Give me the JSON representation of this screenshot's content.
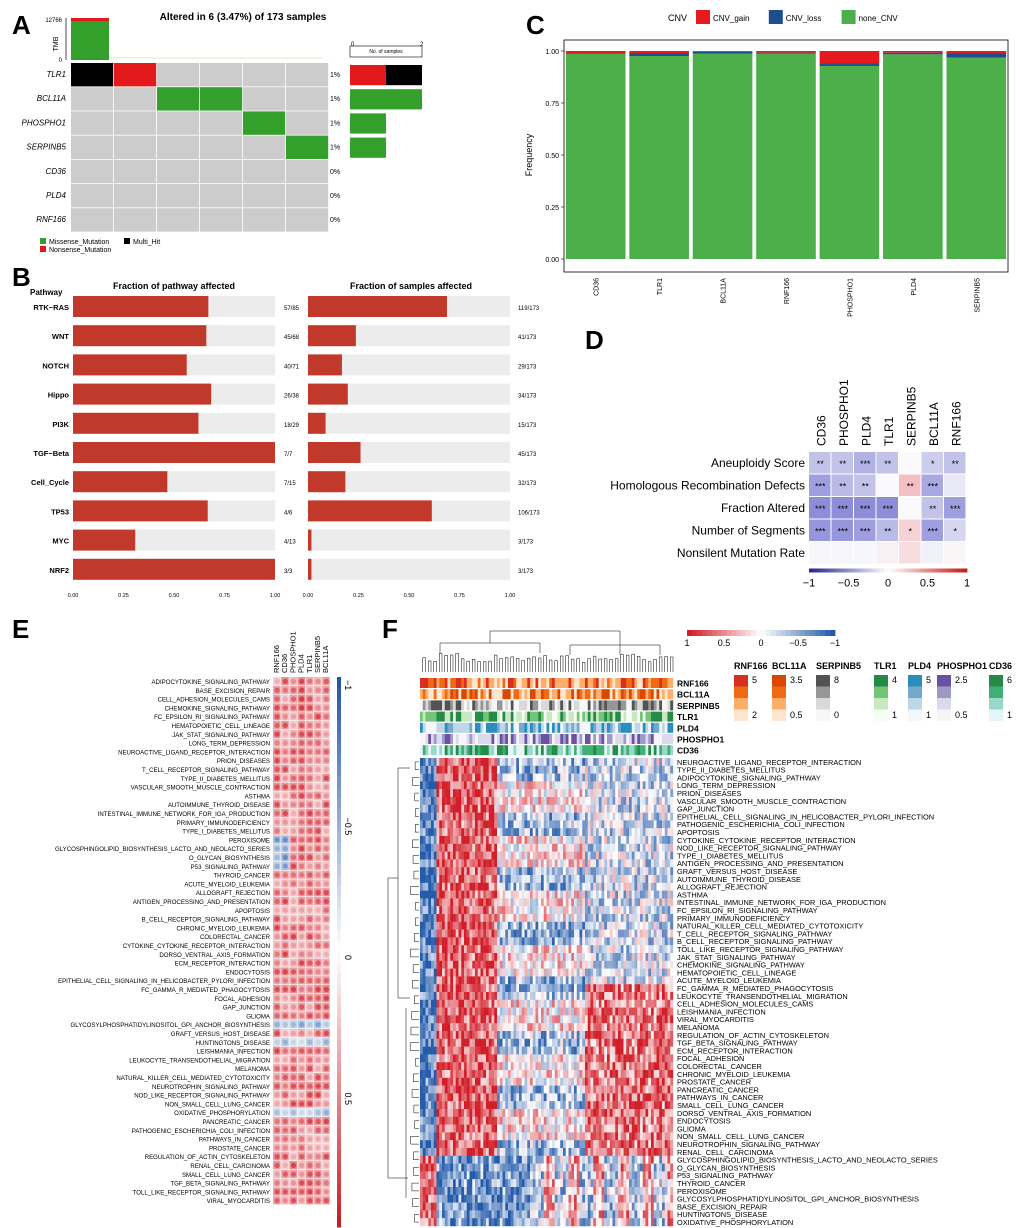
{
  "panel_letters": {
    "a": "A",
    "b": "B",
    "c": "C",
    "d": "D",
    "e": "E",
    "f": "F"
  },
  "panel_a": {
    "title": "Altered in 6 (3.47%) of 173 samples",
    "tmb_label": "TMB",
    "tmb_max": "12766",
    "tmb_min": "0",
    "no_samples_label": "No. of samples",
    "no_samples_ticks": [
      "0",
      "2"
    ],
    "genes": [
      {
        "name": "TLR1",
        "pct": "1%"
      },
      {
        "name": "BCL11A",
        "pct": "1%"
      },
      {
        "name": "PHOSPHO1",
        "pct": "1%"
      },
      {
        "name": "SERPINB5",
        "pct": "1%"
      },
      {
        "name": "CD36",
        "pct": "0%"
      },
      {
        "name": "PLD4",
        "pct": "0%"
      },
      {
        "name": "RNF166",
        "pct": "0%"
      }
    ],
    "legend": [
      "Missense_Mutation",
      "Multi_Hit",
      "Nonsense_Mutation"
    ],
    "colors": {
      "missense": "#33A02C",
      "nonsense": "#E31A1C",
      "multi": "#000000",
      "bg": "#CCCCCC"
    }
  },
  "panel_b": {
    "pathway_header": "Pathway",
    "left_title": "Fraction of pathway affected",
    "right_title": "Fraction of samples affected",
    "x_ticks": [
      "0.00",
      "0.25",
      "0.50",
      "0.75",
      "1.00"
    ],
    "rows": [
      {
        "name": "RTK−RAS",
        "pf": 0.67,
        "pl": "57/85",
        "sf": 0.688,
        "sl": "119/173"
      },
      {
        "name": "WNT",
        "pf": 0.66,
        "pl": "45/68",
        "sf": 0.237,
        "sl": "41/173"
      },
      {
        "name": "NOTCH",
        "pf": 0.563,
        "pl": "40/71",
        "sf": 0.168,
        "sl": "29/173"
      },
      {
        "name": "Hippo",
        "pf": 0.684,
        "pl": "26/38",
        "sf": 0.197,
        "sl": "34/173"
      },
      {
        "name": "PI3K",
        "pf": 0.621,
        "pl": "18/29",
        "sf": 0.087,
        "sl": "15/173"
      },
      {
        "name": "TGF−Beta",
        "pf": 1.0,
        "pl": "7/7",
        "sf": 0.26,
        "sl": "45/173"
      },
      {
        "name": "Cell_Cycle",
        "pf": 0.467,
        "pl": "7/15",
        "sf": 0.185,
        "sl": "32/173"
      },
      {
        "name": "TP53",
        "pf": 0.667,
        "pl": "4/6",
        "sf": 0.613,
        "sl": "106/173"
      },
      {
        "name": "MYC",
        "pf": 0.308,
        "pl": "4/13",
        "sf": 0.017,
        "sl": "3/173"
      },
      {
        "name": "NRF2",
        "pf": 1.0,
        "pl": "3/3",
        "sf": 0.017,
        "sl": "3/173"
      }
    ]
  },
  "chart_data": [
    {
      "type": "bar",
      "title": "",
      "ylabel": "Frequency",
      "ylim": [
        0,
        1
      ],
      "y_ticks": [
        "0.00",
        "0.25",
        "0.50",
        "0.75",
        "1.00"
      ],
      "legend_title": "CNV",
      "legend_position": "top",
      "categories": [
        "CD36",
        "TLR1",
        "BCL11A",
        "RNF166",
        "PHOSPHO1",
        "PLD4",
        "SERPINB5"
      ],
      "series": [
        {
          "name": "CNV_gain",
          "color": "#E41A1C",
          "values": [
            0.01,
            0.012,
            0.004,
            0.008,
            0.06,
            0.008,
            0.012
          ]
        },
        {
          "name": "CNV_loss",
          "color": "#1F4E8C",
          "values": [
            0.004,
            0.012,
            0.008,
            0.004,
            0.012,
            0.008,
            0.02
          ]
        },
        {
          "name": "none_CNV",
          "color": "#4DAF4A",
          "values": [
            0.986,
            0.976,
            0.988,
            0.988,
            0.928,
            0.984,
            0.968
          ]
        }
      ]
    },
    {
      "type": "heatmap",
      "columns": [
        "CD36",
        "PHOSPHO1",
        "PLD4",
        "TLR1",
        "SERPINB5",
        "BCL11A",
        "RNF166"
      ],
      "rows": [
        "Aneuploidy Score",
        "Homologous Recombination Defects",
        "Fraction Altered",
        "Number of Segments",
        "Nonsilent Mutation Rate"
      ],
      "values": [
        [
          -0.3,
          -0.3,
          -0.4,
          -0.3,
          0.0,
          -0.25,
          -0.3
        ],
        [
          -0.5,
          -0.35,
          -0.3,
          0.0,
          0.3,
          -0.45,
          -0.1
        ],
        [
          -0.6,
          -0.6,
          -0.6,
          -0.6,
          0.0,
          -0.3,
          -0.5
        ],
        [
          -0.55,
          -0.55,
          -0.5,
          -0.35,
          0.2,
          -0.5,
          -0.2
        ],
        [
          -0.02,
          -0.02,
          -0.02,
          0.05,
          0.15,
          -0.05,
          0.02
        ]
      ],
      "stars": [
        [
          "**",
          "**",
          "***",
          "**",
          "",
          "*",
          "**"
        ],
        [
          "***",
          "**",
          "**",
          "",
          "**",
          "***",
          ""
        ],
        [
          "***",
          "***",
          "***",
          "***",
          "",
          "**",
          "***"
        ],
        [
          "***",
          "***",
          "***",
          "**",
          "*",
          "***",
          "*"
        ],
        [
          "",
          "",
          "",
          "",
          "",
          "",
          ""
        ]
      ],
      "scale_ticks": [
        "−1",
        "−0.5",
        "0",
        "0.5",
        "1"
      ]
    }
  ],
  "panel_e": {
    "columns": [
      "RNF166",
      "CD36",
      "PHOSPHO1",
      "PLD4",
      "TLR1",
      "SERPINB5",
      "BCL11A"
    ],
    "scale_labels": [
      "−1",
      "−0.5",
      "0",
      "0.5",
      "1"
    ],
    "rows": [
      "ADIPOCYTOKINE_SIGNALING_PATHWAY",
      "BASE_EXCISION_REPAIR",
      "CELL_ADHESION_MOLECULES_CAMS",
      "CHEMOKINE_SIGNALING_PATHWAY",
      "FC_EPSILON_RI_SIGNALING_PATHWAY",
      "HEMATOPOIETIC_CELL_LINEAGE",
      "JAK_STAT_SIGNALING_PATHWAY",
      "LONG_TERM_DEPRESSION",
      "NEUROACTIVE_LIGAND_RECEPTOR_INTERACTION",
      "PRION_DISEASES",
      "T_CELL_RECEPTOR_SIGNALING_PATHWAY",
      "TYPE_II_DIABETES_MELLITUS",
      "VASCULAR_SMOOTH_MUSCLE_CONTRACTION",
      "ASTHMA",
      "AUTOIMMUNE_THYROID_DISEASE",
      "INTESTINAL_IMMUNE_NETWORK_FOR_IGA_PRODUCTION",
      "PRIMARY_IMMUNODEFICIENCY",
      "TYPE_I_DIABETES_MELLITUS",
      "PEROXISOME",
      "GLYCOSPHINGOLIPID_BIOSYNTHESIS_LACTO_AND_NEOLACTO_SERIES",
      "O_GLYCAN_BIOSYNTHESIS",
      "P53_SIGNALING_PATHWAY",
      "THYROID_CANCER",
      "ACUTE_MYELOID_LEUKEMIA",
      "ALLOGRAFT_REJECTION",
      "ANTIGEN_PROCESSING_AND_PRESENTATION",
      "APOPTOSIS",
      "B_CELL_RECEPTOR_SIGNALING_PATHWAY",
      "CHRONIC_MYELOID_LEUKEMIA",
      "COLORECTAL_CANCER",
      "CYTOKINE_CYTOKINE_RECEPTOR_INTERACTION",
      "DORSO_VENTRAL_AXIS_FORMATION",
      "ECM_RECEPTOR_INTERACTION",
      "ENDOCYTOSIS",
      "EPITHELIAL_CELL_SIGNALING_IN_HELICOBACTER_PYLORI_INFECTION",
      "FC_GAMMA_R_MEDIATED_PHAGOCYTOSIS",
      "FOCAL_ADHESION",
      "GAP_JUNCTION",
      "GLIOMA",
      "GLYCOSYLPHOSPHATIDYLINOSITOL_GPI_ANCHOR_BIOSYNTHESIS",
      "GRAFT_VERSUS_HOST_DISEASE",
      "HUNTINGTONS_DISEASE",
      "LEISHMANIA_INFECTION",
      "LEUKOCYTE_TRANSENDOTHELIAL_MIGRATION",
      "MELANOMA",
      "NATURAL_KILLER_CELL_MEDIATED_CYTOTOXICITY",
      "NEUROTROPHIN_SIGNALING_PATHWAY",
      "NOD_LIKE_RECEPTOR_SIGNALING_PATHWAY",
      "NON_SMALL_CELL_LUNG_CANCER",
      "OXIDATIVE_PHOSPHORYLATION",
      "PANCREATIC_CANCER",
      "PATHOGENIC_ESCHERICHIA_COLI_INFECTION",
      "PATHWAYS_IN_CANCER",
      "PROSTATE_CANCER",
      "REGULATION_OF_ACTIN_CYTOSKELETON",
      "RENAL_CELL_CARCINOMA",
      "SMALL_CELL_LUNG_CANCER",
      "TGF_BETA_SIGNALING_PATHWAY",
      "TOLL_LIKE_RECEPTOR_SIGNALING_PATHWAY",
      "VIRAL_MYOCARDITIS"
    ]
  },
  "panel_f": {
    "anno_tracks": [
      "RNF166",
      "BCL11A",
      "SERPINB5",
      "TLR1",
      "PLD4",
      "PHOSPHO1",
      "CD36"
    ],
    "scale_labels": [
      "1",
      "0.5",
      "0",
      "−0.5",
      "−1"
    ],
    "legends": [
      {
        "name": "RNF166",
        "hi": "5",
        "lo": "2",
        "colors": [
          "#D7301F",
          "#F16913",
          "#FDAE6B",
          "#FEE6CE"
        ]
      },
      {
        "name": "BCL11A",
        "hi": "3.5",
        "lo": "0.5",
        "colors": [
          "#D94801",
          "#F16913",
          "#FDAE6B",
          "#FEE6CE"
        ]
      },
      {
        "name": "SERPINB5",
        "hi": "8",
        "lo": "0",
        "colors": [
          "#525252",
          "#969696",
          "#D9D9D9",
          "#F7F7F7"
        ]
      },
      {
        "name": "TLR1",
        "hi": "4",
        "lo": "1",
        "colors": [
          "#238B45",
          "#74C476",
          "#C7E9C0",
          "#F7FCF5"
        ]
      },
      {
        "name": "PLD4",
        "hi": "5",
        "lo": "1",
        "colors": [
          "#2B8CBE",
          "#74A9CF",
          "#BDD7E7",
          "#F1F7FB"
        ]
      },
      {
        "name": "PHOSPHO1",
        "hi": "2.5",
        "lo": "0.5",
        "colors": [
          "#6A51A3",
          "#9E9AC8",
          "#DADAEB",
          "#F6F5FA"
        ]
      },
      {
        "name": "CD36",
        "hi": "6",
        "lo": "1",
        "colors": [
          "#238B45",
          "#41AE76",
          "#99D8C9",
          "#E5F5F9"
        ]
      }
    ],
    "rows": [
      "NEUROACTIVE_LIGAND_RECEPTOR_INTERACTION",
      "TYPE_II_DIABETES_MELLITUS",
      "ADIPOCYTOKINE_SIGNALING_PATHWAY",
      "LONG_TERM_DEPRESSION",
      "PRION_DISEASES",
      "VASCULAR_SMOOTH_MUSCLE_CONTRACTION",
      "GAP_JUNCTION",
      "EPITHELIAL_CELL_SIGNALING_IN_HELICOBACTER_PYLORI_INFECTION",
      "PATHOGENIC_ESCHERICHIA_COLI_INFECTION",
      "APOPTOSIS",
      "CYTOKINE_CYTOKINE_RECEPTOR_INTERACTION",
      "NOD_LIKE_RECEPTOR_SIGNALING_PATHWAY",
      "TYPE_I_DIABETES_MELLITUS",
      "ANTIGEN_PROCESSING_AND_PRESENTATION",
      "GRAFT_VERSUS_HOST_DISEASE",
      "AUTOIMMUNE_THYROID_DISEASE",
      "ALLOGRAFT_REJECTION",
      "ASTHMA",
      "INTESTINAL_IMMUNE_NETWORK_FOR_IGA_PRODUCTION",
      "FC_EPSILON_RI_SIGNALING_PATHWAY",
      "PRIMARY_IMMUNODEFICIENCY",
      "NATURAL_KILLER_CELL_MEDIATED_CYTOTOXICITY",
      "T_CELL_RECEPTOR_SIGNALING_PATHWAY",
      "B_CELL_RECEPTOR_SIGNALING_PATHWAY",
      "TOLL_LIKE_RECEPTOR_SIGNALING_PATHWAY",
      "JAK_STAT_SIGNALING_PATHWAY",
      "CHEMOKINE_SIGNALING_PATHWAY",
      "HEMATOPOIETIC_CELL_LINEAGE",
      "ACUTE_MYELOID_LEUKEMIA",
      "FC_GAMMA_R_MEDIATED_PHAGOCYTOSIS",
      "LEUKOCYTE_TRANSENDOTHELIAL_MIGRATION",
      "CELL_ADHESION_MOLECULES_CAMS",
      "LEISHMANIA_INFECTION",
      "VIRAL_MYOCARDITIS",
      "MELANOMA",
      "REGULATION_OF_ACTIN_CYTOSKELETON",
      "TGF_BETA_SIGNALING_PATHWAY",
      "ECM_RECEPTOR_INTERACTION",
      "FOCAL_ADHESION",
      "COLORECTAL_CANCER",
      "CHRONIC_MYELOID_LEUKEMIA",
      "PROSTATE_CANCER",
      "PANCREATIC_CANCER",
      "PATHWAYS_IN_CANCER",
      "SMALL_CELL_LUNG_CANCER",
      "DORSO_VENTRAL_AXIS_FORMATION",
      "ENDOCYTOSIS",
      "GLIOMA",
      "NON_SMALL_CELL_LUNG_CANCER",
      "NEUROTROPHIN_SIGNALING_PATHWAY",
      "RENAL_CELL_CARCINOMA",
      "GLYCOSPHINGOLIPID_BIOSYNTHESIS_LACTO_AND_NEOLACTO_SERIES",
      "O_GLYCAN_BIOSYNTHESIS",
      "P53_SIGNALING_PATHWAY",
      "THYROID_CANCER",
      "PEROXISOME",
      "GLYCOSYLPHOSPHATIDYLINOSITOL_GPI_ANCHOR_BIOSYNTHESIS",
      "BASE_EXCISION_REPAIR",
      "HUNTINGTONS_DISEASE",
      "OXIDATIVE_PHOSPHORYLATION"
    ]
  }
}
